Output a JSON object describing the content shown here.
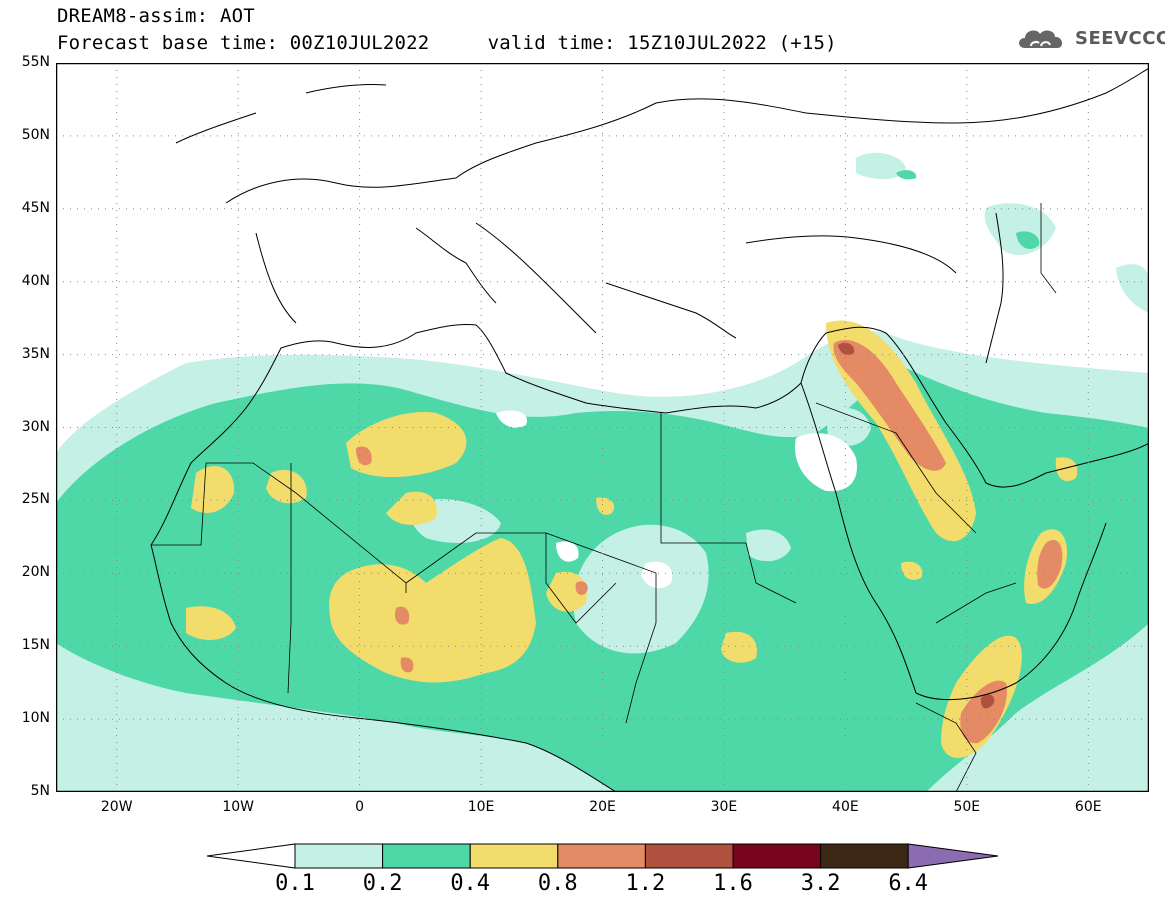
{
  "header": {
    "title_line1": "DREAM8-assim: AOT",
    "title_line2": "Forecast base time: 00Z10JUL2022     valid time: 15Z10JUL2022 (+15)"
  },
  "logo": {
    "text": "SEEVCCC",
    "icon": "cloud-icon"
  },
  "axes": {
    "lat_labels": [
      "55N",
      "50N",
      "45N",
      "40N",
      "35N",
      "30N",
      "25N",
      "20N",
      "15N",
      "10N",
      "5N"
    ],
    "lon_labels": [
      "20W",
      "10W",
      "0",
      "10E",
      "20E",
      "30E",
      "40E",
      "50E",
      "60E"
    ],
    "lon_range": [
      -25,
      65
    ],
    "lat_range": [
      5,
      55
    ],
    "grid": "dotted"
  },
  "colorbar": {
    "levels": [
      "0.1",
      "0.2",
      "0.4",
      "0.8",
      "1.2",
      "1.6",
      "3.2",
      "6.4"
    ],
    "colors": [
      "#c4f0e6",
      "#4ed8a8",
      "#f2dc6c",
      "#e48a64",
      "#b0503e",
      "#78041e",
      "#3c2814",
      "#8c6cb0"
    ]
  }
}
